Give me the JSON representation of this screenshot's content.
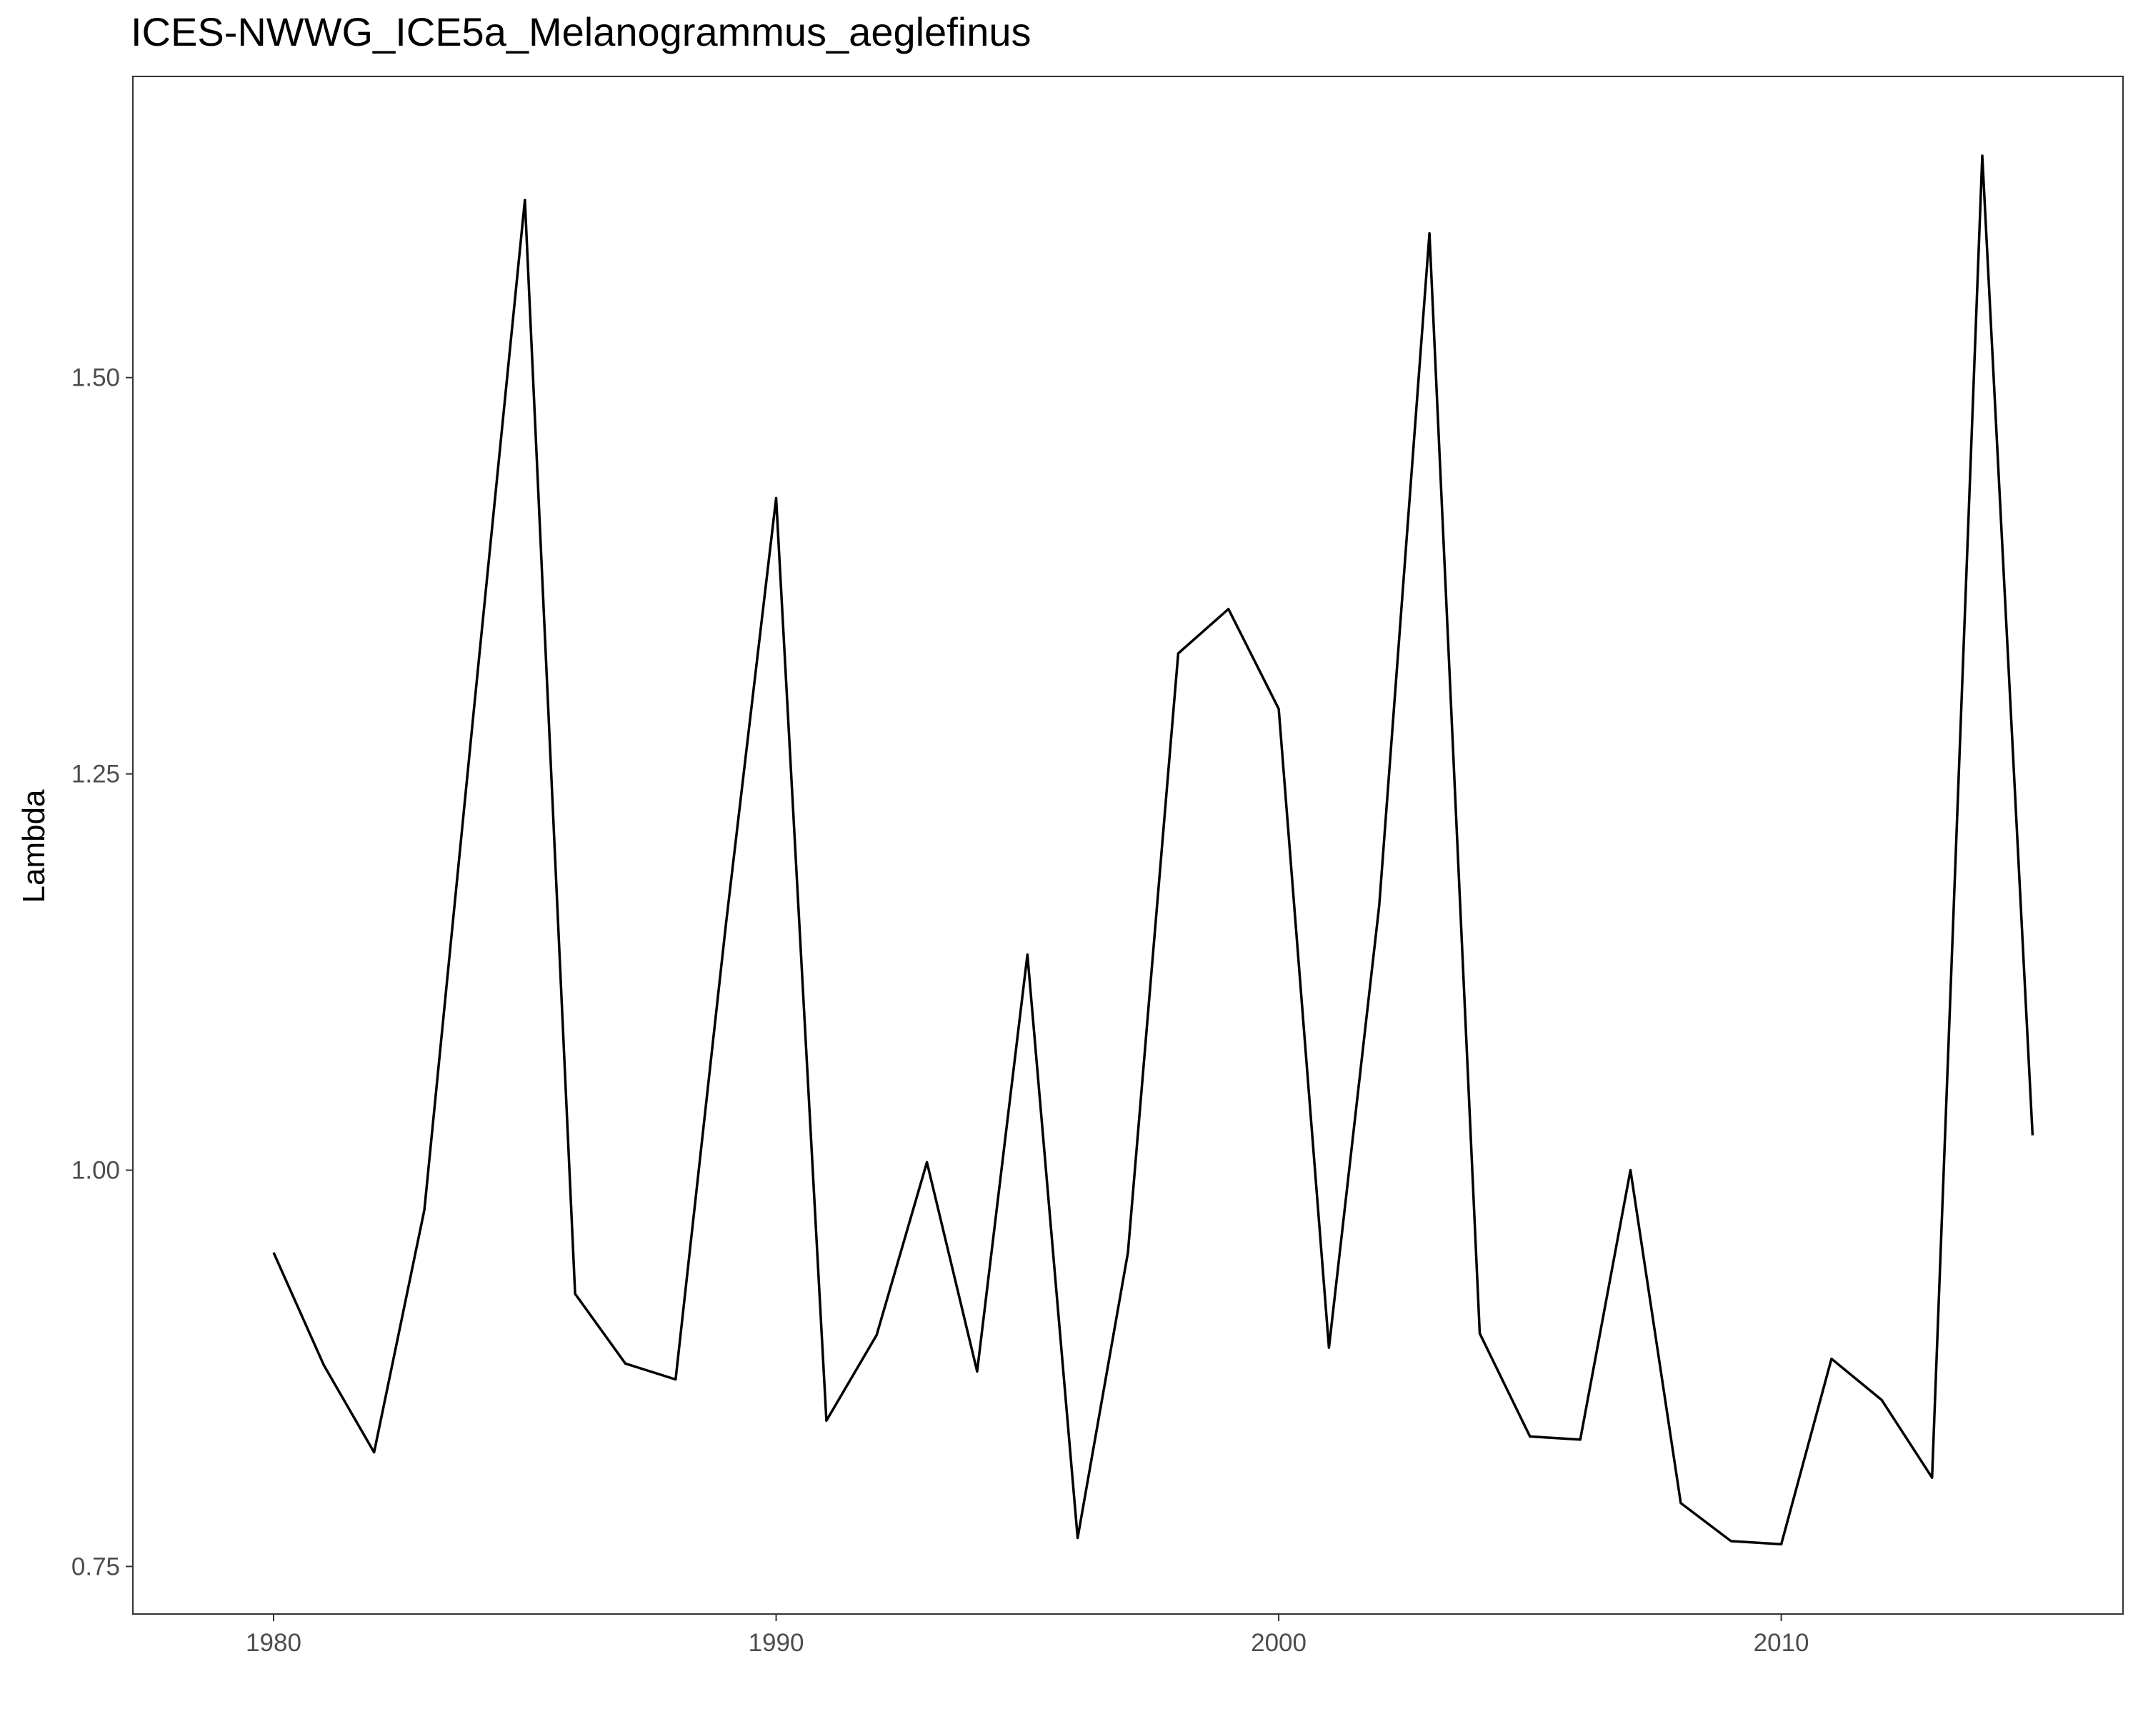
{
  "chart_data": {
    "type": "line",
    "title": "ICES-NWWG_ICE5a_Melanogrammus_aeglefinus",
    "xlabel": "",
    "ylabel": "Lambda",
    "xlim": [
      1977.2,
      2016.8
    ],
    "ylim": [
      0.72,
      1.69
    ],
    "xticks": [
      1980,
      1990,
      2000,
      2010
    ],
    "xtick_labels": [
      "1980",
      "1990",
      "2000",
      "2010"
    ],
    "yticks": [
      0.75,
      1.0,
      1.25,
      1.5
    ],
    "ytick_labels": [
      "0.75",
      "1.00",
      "1.25",
      "1.50"
    ],
    "grid": false,
    "line_color": "#000000",
    "series": [
      {
        "x": [
          1980,
          1981,
          1982,
          1983,
          1984,
          1985,
          1986,
          1987,
          1988,
          1989,
          1990,
          1991,
          1992,
          1993,
          1994,
          1995,
          1996,
          1997,
          1998,
          1999,
          2000,
          2001,
          2002,
          2003,
          2004,
          2005,
          2006,
          2007,
          2008,
          2009,
          2010,
          2011,
          2012,
          2013,
          2014,
          2015
        ],
        "values": [
          0.948,
          0.877,
          0.822,
          0.975,
          1.295,
          1.612,
          0.922,
          0.878,
          0.868,
          1.155,
          1.424,
          0.842,
          0.896,
          1.005,
          0.873,
          1.136,
          0.768,
          0.948,
          1.326,
          1.354,
          1.291,
          0.888,
          1.167,
          1.591,
          0.897,
          0.832,
          0.83,
          1.0,
          0.79,
          0.766,
          0.764,
          0.881,
          0.855,
          0.806,
          1.64,
          1.022
        ]
      }
    ]
  }
}
